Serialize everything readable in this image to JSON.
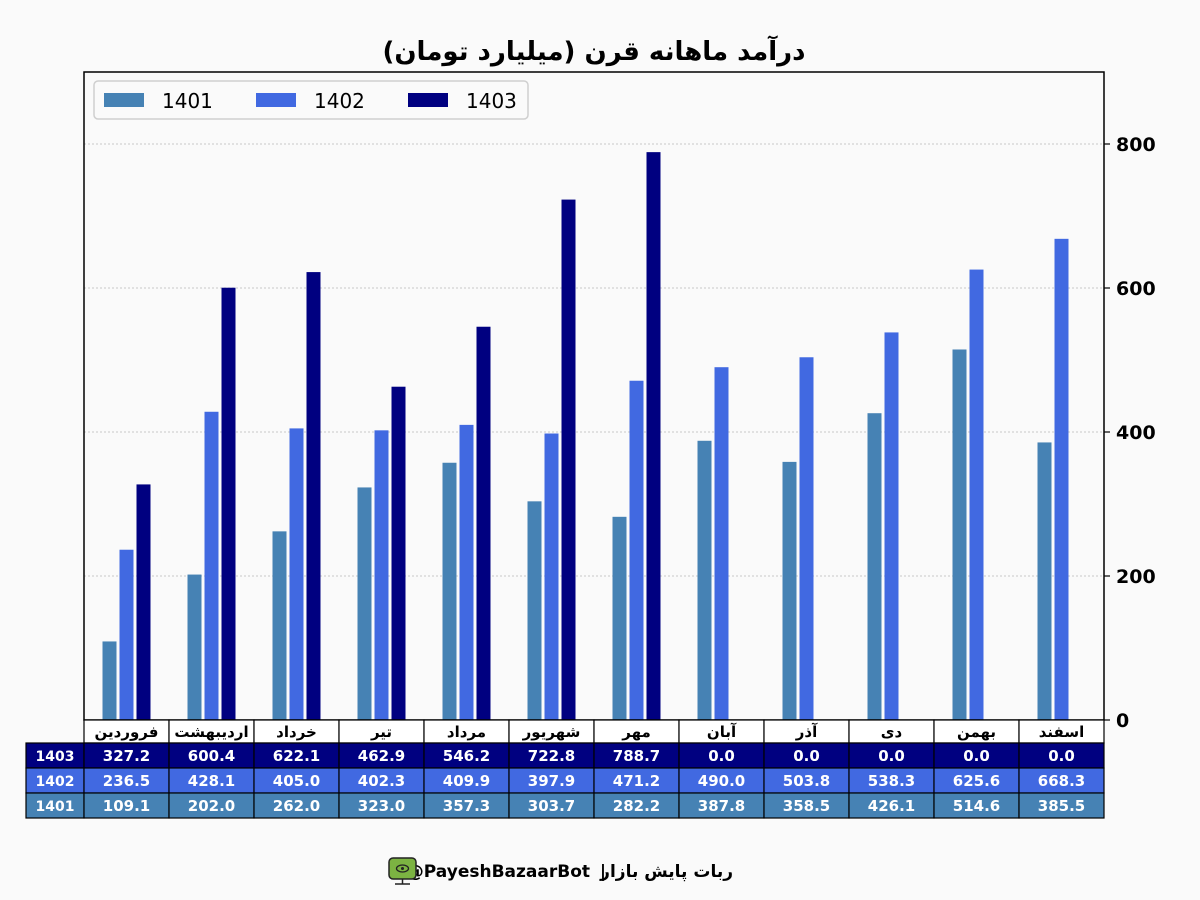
{
  "chart_data": {
    "type": "bar",
    "title": "درآمد ماهانه قرن (میلیارد تومان)",
    "xlabel": "",
    "ylabel": "",
    "ylim": [
      0,
      900
    ],
    "yticks": [
      0,
      200,
      400,
      600,
      800
    ],
    "y_axis_side": "right",
    "grid": true,
    "legend_position": "top-left",
    "categories": [
      "فروردین",
      "اردیبهشت",
      "خرداد",
      "تیر",
      "مرداد",
      "شهریور",
      "مهر",
      "آبان",
      "آذر",
      "دی",
      "بهمن",
      "اسفند"
    ],
    "series": [
      {
        "name": "1401",
        "color": "#4682b4",
        "values": [
          109.1,
          202.0,
          262.0,
          323.0,
          357.3,
          303.7,
          282.2,
          387.8,
          358.5,
          426.1,
          514.6,
          385.5
        ]
      },
      {
        "name": "1402",
        "color": "#4169e1",
        "values": [
          236.5,
          428.1,
          405.0,
          402.3,
          409.9,
          397.9,
          471.2,
          490.0,
          503.8,
          538.3,
          625.6,
          668.3
        ]
      },
      {
        "name": "1403",
        "color": "#000080",
        "values": [
          327.2,
          600.4,
          622.1,
          462.9,
          546.2,
          722.8,
          788.7,
          0.0,
          0.0,
          0.0,
          0.0,
          0.0
        ]
      }
    ],
    "table": {
      "row_order": [
        "1403",
        "1402",
        "1401"
      ],
      "value_format": "one-decimal"
    }
  },
  "footer": {
    "bot_name": "ربات پایش بازار",
    "separator": "|",
    "handle": "@PayeshBazaarBot",
    "icon": "monitor-icon"
  }
}
